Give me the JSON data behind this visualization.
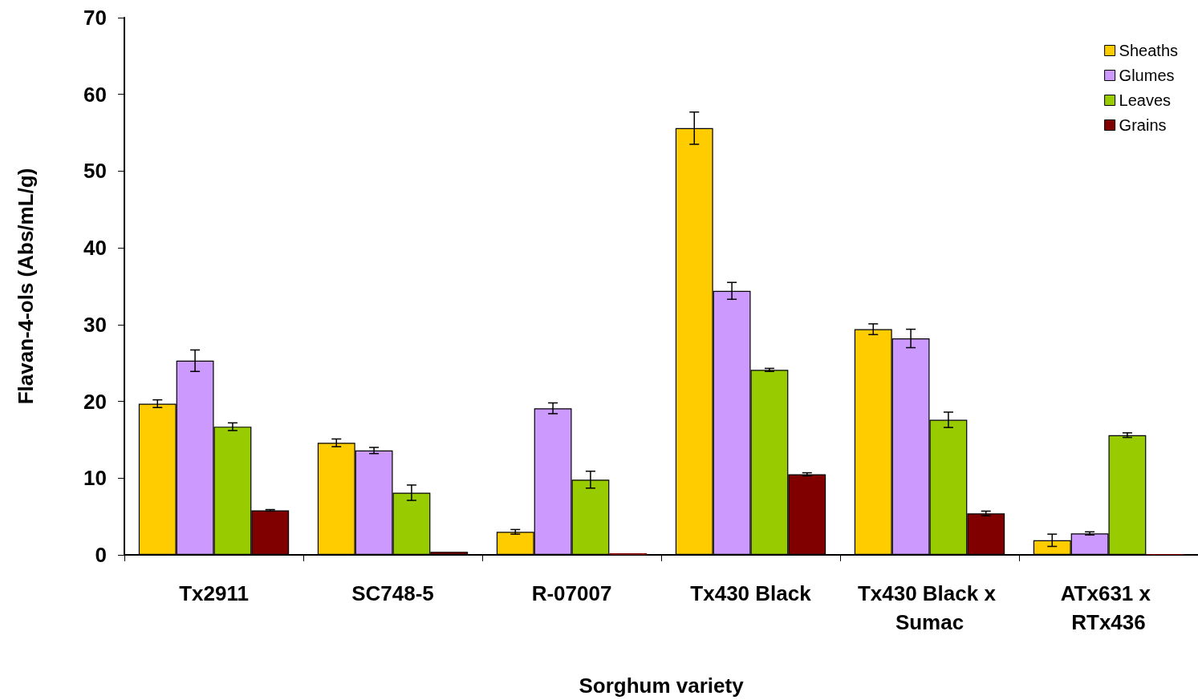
{
  "chart_data": {
    "type": "bar",
    "xlabel": "Sorghum variety",
    "ylabel": "Flavan-4-ols (Abs/mL/g)",
    "categories": [
      "Tx2911",
      "SC748-5",
      "R-07007",
      "Tx430 Black",
      "Tx430 Black x Sumac",
      "ATx631 x RTx436"
    ],
    "series": [
      {
        "name": "Sheaths",
        "color": "#ffcc00",
        "values": [
          19.7,
          14.6,
          3.0,
          55.6,
          29.4,
          1.9
        ],
        "errors": [
          0.5,
          0.5,
          0.3,
          2.1,
          0.7,
          0.8
        ]
      },
      {
        "name": "Glumes",
        "color": "#cc99ff",
        "values": [
          25.3,
          13.6,
          19.1,
          34.4,
          28.2,
          2.8
        ],
        "errors": [
          1.4,
          0.4,
          0.7,
          1.1,
          1.2,
          0.2
        ]
      },
      {
        "name": "Leaves",
        "color": "#99cc00",
        "values": [
          16.7,
          8.1,
          9.8,
          24.1,
          17.6,
          15.6
        ],
        "errors": [
          0.5,
          1.0,
          1.1,
          0.2,
          1.0,
          0.3
        ]
      },
      {
        "name": "Grains",
        "color": "#800000",
        "values": [
          5.8,
          0.4,
          0.2,
          10.5,
          5.4,
          0.1
        ],
        "errors": [
          0.1,
          null,
          null,
          0.2,
          0.3,
          null
        ]
      }
    ],
    "ylim": [
      0,
      70
    ],
    "yticks": [
      0,
      10,
      20,
      30,
      40,
      50,
      60,
      70
    ],
    "grid": false,
    "legend": "top right"
  }
}
